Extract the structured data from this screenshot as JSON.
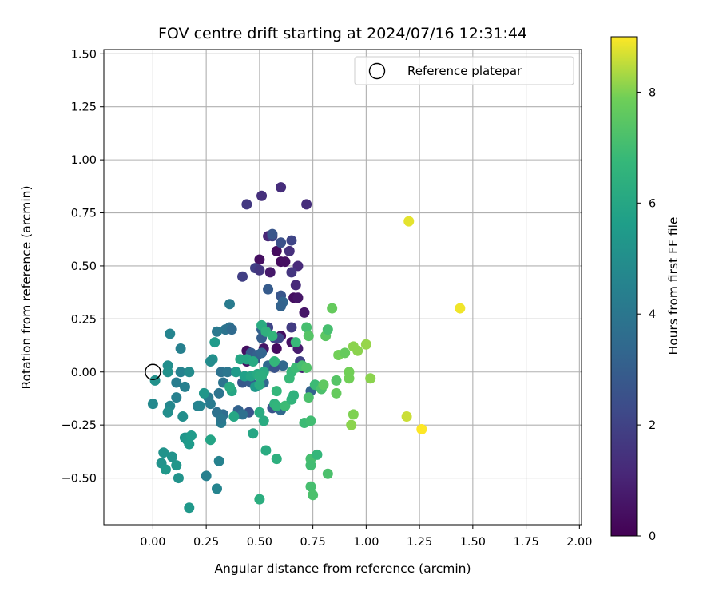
{
  "chart_data": {
    "type": "scatter",
    "title": "FOV centre drift starting at 2024/07/16 12:31:44",
    "xlabel": "Angular distance from reference (arcmin)",
    "ylabel": "Rotation from reference (arcmin)",
    "xlim": [
      -0.23,
      2.01
    ],
    "ylim": [
      -0.72,
      1.52
    ],
    "xticks": [
      "0.00",
      "0.25",
      "0.50",
      "0.75",
      "1.00",
      "1.25",
      "1.50",
      "1.75",
      "2.00"
    ],
    "yticks": [
      "−0.50",
      "−0.25",
      "0.00",
      "0.25",
      "0.50",
      "0.75",
      "1.00",
      "1.25",
      "1.50"
    ],
    "grid": true,
    "colormap": "viridis",
    "colorbar": {
      "label": "Hours from first FF file",
      "range": [
        0,
        9
      ],
      "ticks": [
        "0",
        "2",
        "4",
        "6",
        "8"
      ]
    },
    "legend": {
      "position": "top-right",
      "entries": [
        "Reference platepar"
      ]
    },
    "reference_point": {
      "x": 0.0,
      "y": 0.0
    },
    "points": [
      [
        0.6,
        0.52,
        0.3
      ],
      [
        0.62,
        0.52,
        0.4
      ],
      [
        0.58,
        0.57,
        0.3
      ],
      [
        0.66,
        0.35,
        0.4
      ],
      [
        0.68,
        0.35,
        0.6
      ],
      [
        0.55,
        0.47,
        0.7
      ],
      [
        0.5,
        0.53,
        0.4
      ],
      [
        0.71,
        0.28,
        0.6
      ],
      [
        0.6,
        0.17,
        0.4
      ],
      [
        0.58,
        0.11,
        0.3
      ],
      [
        0.44,
        0.1,
        0.4
      ],
      [
        0.44,
        0.05,
        0.5
      ],
      [
        0.65,
        0.14,
        0.5
      ],
      [
        0.68,
        0.11,
        0.8
      ],
      [
        0.7,
        0.02,
        0.9
      ],
      [
        0.52,
        0.11,
        0.6
      ],
      [
        0.6,
        0.87,
        1.3
      ],
      [
        0.51,
        0.83,
        1.4
      ],
      [
        0.72,
        0.79,
        1.3
      ],
      [
        0.44,
        0.79,
        1.7
      ],
      [
        0.54,
        0.64,
        1.1
      ],
      [
        0.56,
        0.64,
        2.0
      ],
      [
        0.56,
        0.65,
        2.7
      ],
      [
        0.6,
        0.61,
        2.5
      ],
      [
        0.65,
        0.62,
        2.1
      ],
      [
        0.64,
        0.57,
        1.4
      ],
      [
        0.68,
        0.5,
        1.2
      ],
      [
        0.65,
        0.47,
        1.6
      ],
      [
        0.48,
        0.49,
        1.9
      ],
      [
        0.5,
        0.48,
        1.6
      ],
      [
        0.42,
        0.45,
        1.9
      ],
      [
        0.6,
        0.36,
        2.7
      ],
      [
        0.67,
        0.41,
        1.2
      ],
      [
        0.54,
        0.39,
        2.9
      ],
      [
        0.61,
        0.33,
        3.3
      ],
      [
        0.6,
        0.31,
        3.2
      ],
      [
        0.54,
        0.21,
        2.1
      ],
      [
        0.65,
        0.21,
        1.8
      ],
      [
        0.59,
        0.16,
        2.2
      ],
      [
        0.51,
        0.2,
        3.2
      ],
      [
        0.51,
        0.16,
        3.0
      ],
      [
        0.57,
        0.16,
        2.1
      ],
      [
        0.69,
        0.05,
        2.0
      ],
      [
        0.61,
        0.03,
        3.4
      ],
      [
        0.48,
        0.06,
        2.4
      ],
      [
        0.46,
        0.09,
        2.9
      ],
      [
        0.49,
        0.08,
        3.1
      ],
      [
        0.51,
        0.09,
        3.3
      ],
      [
        0.54,
        0.03,
        3.5
      ],
      [
        0.57,
        0.02,
        2.6
      ],
      [
        0.42,
        -0.05,
        2.8
      ],
      [
        0.46,
        -0.05,
        3.0
      ],
      [
        0.52,
        -0.05,
        3.4
      ],
      [
        0.4,
        -0.18,
        3.2
      ],
      [
        0.45,
        -0.19,
        2.6
      ],
      [
        0.56,
        -0.17,
        2.6
      ],
      [
        0.6,
        -0.18,
        3.4
      ],
      [
        0.74,
        -0.09,
        3.2
      ],
      [
        0.42,
        -0.2,
        3.7
      ],
      [
        0.33,
        -0.2,
        3.6
      ],
      [
        0.34,
        0.2,
        3.9
      ],
      [
        0.3,
        0.19,
        4.1
      ],
      [
        0.36,
        0.21,
        3.8
      ],
      [
        0.36,
        0.32,
        4.2
      ],
      [
        0.37,
        0.2,
        3.5
      ],
      [
        0.32,
        0.0,
        3.8
      ],
      [
        0.35,
        0.0,
        4.0
      ],
      [
        0.33,
        -0.05,
        3.9
      ],
      [
        0.31,
        -0.1,
        3.9
      ],
      [
        0.26,
        -0.12,
        4.2
      ],
      [
        0.27,
        -0.15,
        4.2
      ],
      [
        0.3,
        -0.19,
        3.8
      ],
      [
        0.32,
        -0.24,
        4.2
      ],
      [
        0.32,
        -0.22,
        4.0
      ],
      [
        0.31,
        -0.42,
        4.5
      ],
      [
        0.3,
        -0.55,
        4.6
      ],
      [
        0.25,
        -0.49,
        4.4
      ],
      [
        0.21,
        -0.16,
        4.5
      ],
      [
        0.22,
        -0.16,
        4.6
      ],
      [
        0.15,
        -0.07,
        4.4
      ],
      [
        0.11,
        -0.05,
        4.3
      ],
      [
        0.13,
        0.0,
        4.5
      ],
      [
        0.17,
        0.0,
        4.9
      ],
      [
        0.11,
        -0.12,
        4.4
      ],
      [
        0.08,
        -0.16,
        4.7
      ],
      [
        0.07,
        -0.19,
        5.0
      ],
      [
        0.0,
        -0.15,
        4.8
      ],
      [
        0.08,
        0.18,
        4.6
      ],
      [
        0.13,
        0.11,
        4.4
      ],
      [
        0.07,
        0.03,
        5.0
      ],
      [
        0.07,
        0.0,
        5.1
      ],
      [
        0.01,
        -0.04,
        5.1
      ],
      [
        0.14,
        -0.21,
        5.0
      ],
      [
        0.04,
        -0.43,
        5.2
      ],
      [
        0.05,
        -0.38,
        5.2
      ],
      [
        0.06,
        -0.46,
        5.4
      ],
      [
        0.09,
        -0.4,
        5.2
      ],
      [
        0.11,
        -0.44,
        5.3
      ],
      [
        0.12,
        -0.5,
        5.2
      ],
      [
        0.15,
        -0.31,
        5.3
      ],
      [
        0.16,
        -0.31,
        5.2
      ],
      [
        0.16,
        -0.32,
        5.4
      ],
      [
        0.17,
        -0.34,
        5.5
      ],
      [
        0.18,
        -0.3,
        5.5
      ],
      [
        0.17,
        -0.64,
        5.4
      ],
      [
        0.28,
        0.06,
        5.1
      ],
      [
        0.27,
        0.05,
        4.9
      ],
      [
        0.24,
        -0.1,
        5.3
      ],
      [
        0.29,
        0.14,
        5.5
      ],
      [
        0.39,
        0.0,
        5.5
      ],
      [
        0.43,
        -0.02,
        5.7
      ],
      [
        0.46,
        -0.02,
        5.9
      ],
      [
        0.48,
        -0.07,
        5.4
      ],
      [
        0.5,
        -0.06,
        6.2
      ],
      [
        0.5,
        -0.6,
        6.3
      ],
      [
        0.53,
        -0.37,
        6.2
      ],
      [
        0.58,
        -0.41,
        6.4
      ],
      [
        0.52,
        -0.23,
        6.2
      ],
      [
        0.27,
        -0.32,
        5.9
      ],
      [
        0.38,
        -0.21,
        6.0
      ],
      [
        0.37,
        -0.09,
        6.0
      ],
      [
        0.36,
        -0.07,
        6.2
      ],
      [
        0.41,
        0.06,
        6.0
      ],
      [
        0.44,
        0.06,
        6.0
      ],
      [
        0.47,
        0.05,
        6.1
      ],
      [
        0.49,
        -0.01,
        6.1
      ],
      [
        0.5,
        -0.02,
        6.3
      ],
      [
        0.52,
        0.0,
        6.2
      ],
      [
        0.51,
        -0.02,
        6.3
      ],
      [
        0.51,
        0.22,
        6.2
      ],
      [
        0.53,
        0.19,
        6.5
      ],
      [
        0.56,
        0.17,
        6.6
      ],
      [
        0.57,
        0.05,
        6.7
      ],
      [
        0.58,
        -0.09,
        6.7
      ],
      [
        0.57,
        -0.15,
        6.5
      ],
      [
        0.58,
        -0.16,
        6.6
      ],
      [
        0.62,
        -0.16,
        6.9
      ],
      [
        0.65,
        -0.13,
        6.6
      ],
      [
        0.66,
        -0.11,
        6.5
      ],
      [
        0.64,
        -0.03,
        6.8
      ],
      [
        0.65,
        0.0,
        6.8
      ],
      [
        0.67,
        0.02,
        6.9
      ],
      [
        0.67,
        0.14,
        6.8
      ],
      [
        0.7,
        0.03,
        7.1
      ],
      [
        0.72,
        0.02,
        7.3
      ],
      [
        0.73,
        -0.12,
        7.2
      ],
      [
        0.72,
        0.21,
        7.1
      ],
      [
        0.73,
        0.17,
        7.4
      ],
      [
        0.47,
        -0.29,
        6.0
      ],
      [
        0.5,
        -0.19,
        6.2
      ],
      [
        0.71,
        -0.24,
        6.9
      ],
      [
        0.74,
        -0.41,
        7.1
      ],
      [
        0.74,
        -0.44,
        7.0
      ],
      [
        0.77,
        -0.39,
        6.7
      ],
      [
        0.74,
        -0.54,
        7.1
      ],
      [
        0.75,
        -0.58,
        7.2
      ],
      [
        0.82,
        -0.48,
        7.2
      ],
      [
        0.74,
        -0.23,
        7.0
      ],
      [
        0.76,
        -0.06,
        6.9
      ],
      [
        0.79,
        -0.08,
        7.2
      ],
      [
        0.8,
        -0.06,
        7.6
      ],
      [
        0.81,
        0.17,
        7.5
      ],
      [
        0.82,
        0.2,
        7.1
      ],
      [
        0.84,
        0.3,
        7.7
      ],
      [
        0.86,
        -0.04,
        7.4
      ],
      [
        0.86,
        -0.1,
        7.7
      ],
      [
        0.87,
        0.08,
        7.9
      ],
      [
        0.9,
        0.09,
        7.7
      ],
      [
        0.92,
        0.0,
        7.9
      ],
      [
        0.92,
        -0.03,
        7.9
      ],
      [
        0.93,
        -0.25,
        8.1
      ],
      [
        0.94,
        -0.2,
        8.0
      ],
      [
        0.94,
        0.12,
        8.1
      ],
      [
        0.96,
        0.1,
        8.1
      ],
      [
        1.0,
        0.13,
        8.2
      ],
      [
        1.02,
        -0.03,
        8.1
      ],
      [
        1.19,
        -0.21,
        8.6
      ],
      [
        1.2,
        0.71,
        8.8
      ],
      [
        1.26,
        -0.27,
        9.0
      ],
      [
        1.44,
        0.3,
        8.9
      ]
    ]
  }
}
